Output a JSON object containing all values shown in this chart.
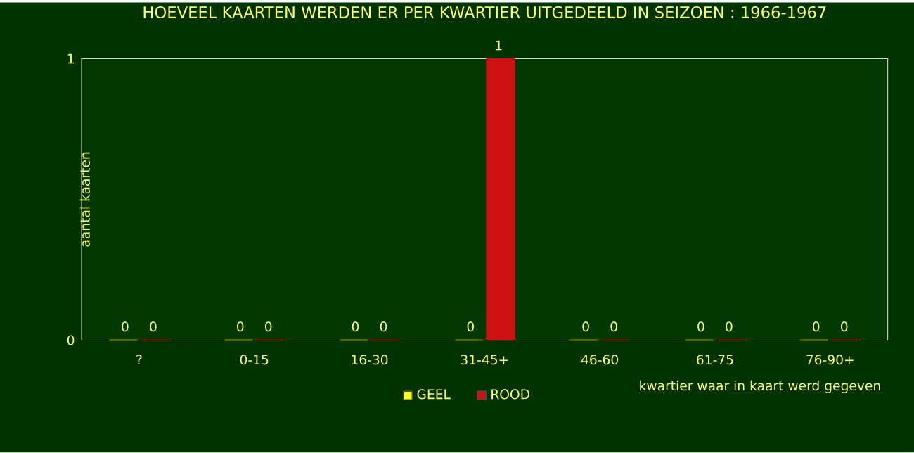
{
  "chart_data": {
    "type": "bar",
    "title": "HOEVEEL KAARTEN WERDEN ER PER KWARTIER UITGEDEELD IN SEIZOEN : 1966-1967",
    "xlabel": "kwartier waar in kaart werd gegeven",
    "ylabel": "aantal kaarten",
    "categories": [
      "?",
      "0-15",
      "16-30",
      "31-45+",
      "46-60",
      "61-75",
      "76-90+"
    ],
    "series": [
      {
        "name": "GEEL",
        "color": "#ffff00",
        "values": [
          0,
          0,
          0,
          0,
          0,
          0,
          0
        ]
      },
      {
        "name": "ROOD",
        "color": "#cc1111",
        "values": [
          0,
          0,
          0,
          1,
          0,
          0,
          0
        ]
      }
    ],
    "ylim": [
      0,
      1
    ],
    "yticks": [
      0,
      1
    ],
    "data_labels": true,
    "legend": "bottom",
    "grid": false
  }
}
